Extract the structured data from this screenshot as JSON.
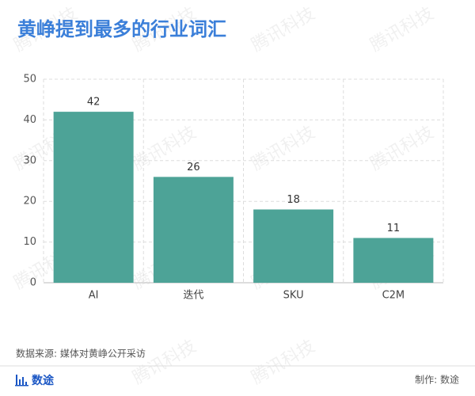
{
  "chart_data": {
    "type": "bar",
    "title": "黄峥提到最多的行业词汇",
    "categories": [
      "AI",
      "迭代",
      "SKU",
      "C2M"
    ],
    "values": [
      42,
      26,
      18,
      11
    ],
    "color": "#4da397",
    "ylim": [
      0,
      50
    ],
    "yticks": [
      0,
      10,
      20,
      30,
      40,
      50
    ],
    "grid": true,
    "source": "数据来源: 媒体对黄峥公开采访",
    "brand": "数途",
    "credit": "制作: 数途",
    "watermark": "腾讯科技"
  }
}
